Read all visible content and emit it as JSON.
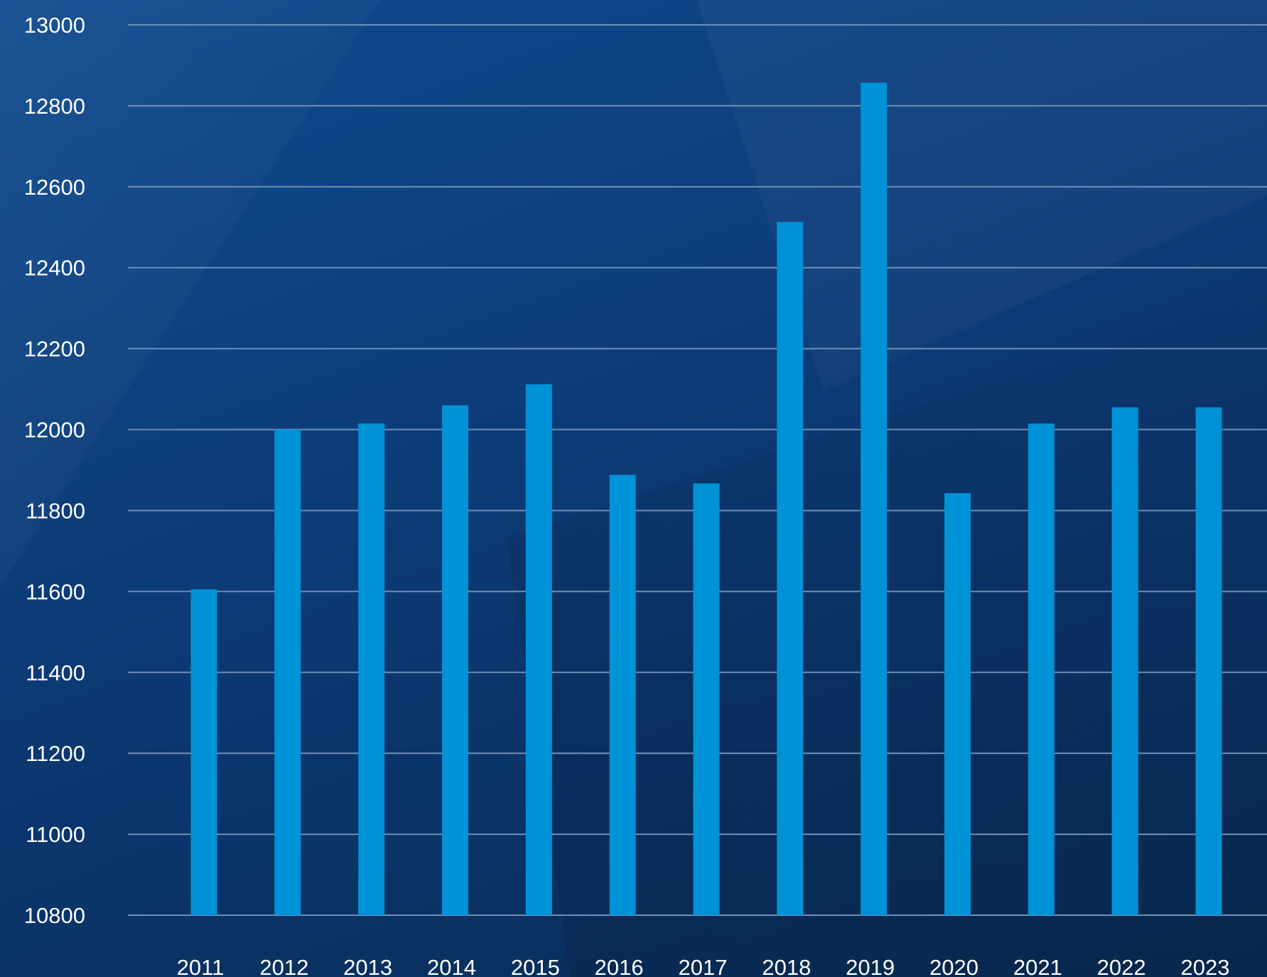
{
  "chart_data": {
    "type": "bar",
    "categories": [
      "2011",
      "2012",
      "2013",
      "2014",
      "2015",
      "2016",
      "2017",
      "2018",
      "2019",
      "2020",
      "2021",
      "2022",
      "2023"
    ],
    "values": [
      11605,
      12000,
      12015,
      12060,
      12112,
      11888,
      11867,
      12513,
      12857,
      11843,
      12015,
      12055,
      12055
    ],
    "title": "",
    "xlabel": "",
    "ylabel": "",
    "ylim": [
      10800,
      13000
    ],
    "yticks": [
      "10800",
      "11000",
      "11200",
      "11400",
      "11600",
      "11800",
      "12000",
      "12200",
      "12400",
      "12600",
      "12800",
      "13000"
    ],
    "grid": true,
    "legend": "none",
    "colors": {
      "bar": "#0092d6",
      "gridline": "#6f8fb8",
      "text": "#ffffff",
      "background": "#0d3f7c"
    }
  }
}
